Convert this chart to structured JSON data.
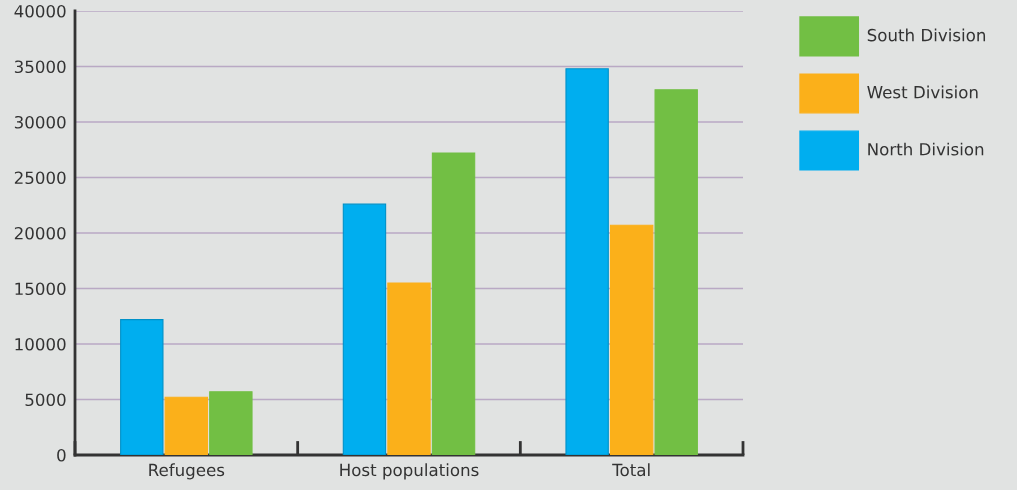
{
  "chart_data": {
    "type": "bar",
    "categories": [
      "Refugees",
      "Host populations",
      "Total"
    ],
    "series": [
      {
        "name": "North Division",
        "color": "#00aeef",
        "values": [
          12200,
          22600,
          34800
        ]
      },
      {
        "name": "West Division",
        "color": "#fbb01a",
        "values": [
          5200,
          15500,
          20700
        ]
      },
      {
        "name": "South Division",
        "color": "#72bf44",
        "values": [
          5700,
          27200,
          32900
        ]
      }
    ],
    "ylim": [
      0,
      40000
    ],
    "yticks": [
      0,
      5000,
      10000,
      15000,
      20000,
      25000,
      30000,
      35000,
      40000
    ],
    "grid": "y",
    "legend": "top right"
  }
}
